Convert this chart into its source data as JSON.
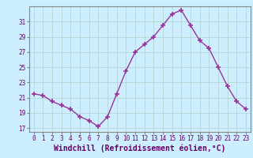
{
  "x": [
    0,
    1,
    2,
    3,
    4,
    5,
    6,
    7,
    8,
    9,
    10,
    11,
    12,
    13,
    14,
    15,
    16,
    17,
    18,
    19,
    20,
    21,
    22,
    23
  ],
  "y": [
    21.5,
    21.3,
    20.5,
    20.0,
    19.5,
    18.5,
    18.0,
    17.2,
    18.5,
    21.5,
    24.5,
    27.0,
    28.0,
    29.0,
    30.5,
    32.0,
    32.5,
    30.5,
    28.5,
    27.5,
    25.0,
    22.5,
    20.5,
    19.5
  ],
  "line_color": "#993399",
  "marker": "+",
  "marker_size": 4,
  "marker_lw": 1.2,
  "bg_color": "#cceeff",
  "grid_color": "#aaddcc",
  "xlabel": "Windchill (Refroidissement éolien,°C)",
  "xlabel_color": "#660066",
  "ylim": [
    16.5,
    33.0
  ],
  "xlim": [
    -0.5,
    23.5
  ],
  "yticks": [
    17,
    19,
    21,
    23,
    25,
    27,
    29,
    31
  ],
  "xticks": [
    0,
    1,
    2,
    3,
    4,
    5,
    6,
    7,
    8,
    9,
    10,
    11,
    12,
    13,
    14,
    15,
    16,
    17,
    18,
    19,
    20,
    21,
    22,
    23
  ],
  "tick_color": "#660066",
  "tick_fontsize": 5.5,
  "xlabel_fontsize": 7.0,
  "axis_color": "#888888",
  "spine_color": "#888888"
}
